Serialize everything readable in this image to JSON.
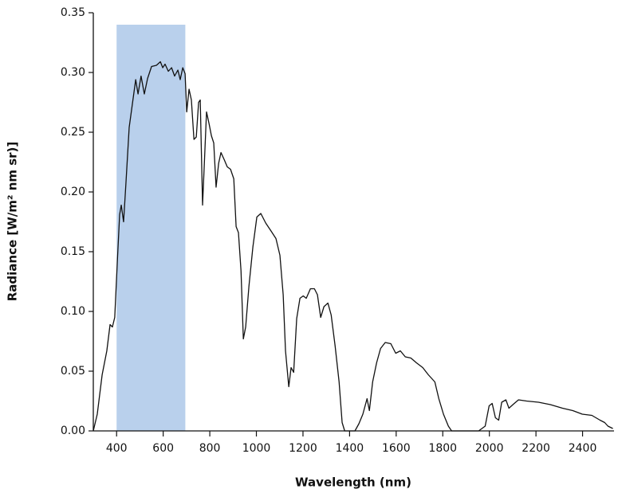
{
  "chart_data": {
    "type": "line",
    "xlabel": "Wavelength (nm)",
    "ylabel": "Radiance [W/m² nm sr)]",
    "color": "#111111",
    "x": [
      300,
      317,
      338,
      358,
      372,
      382,
      392,
      403,
      413,
      420,
      430,
      440,
      454,
      468,
      482,
      492,
      505,
      519,
      533,
      550,
      571,
      588,
      598,
      608,
      622,
      636,
      649,
      663,
      673,
      684,
      694,
      701,
      711,
      721,
      732,
      742,
      752,
      759,
      769,
      776,
      786,
      797,
      807,
      817,
      827,
      838,
      848,
      862,
      875,
      889,
      903,
      913,
      923,
      934,
      944,
      954,
      968,
      985,
      1002,
      1019,
      1040,
      1064,
      1084,
      1101,
      1115,
      1125,
      1139,
      1149,
      1160,
      1173,
      1187,
      1201,
      1214,
      1232,
      1249,
      1262,
      1276,
      1290,
      1307,
      1321,
      1338,
      1355,
      1368,
      1379,
      1423,
      1440,
      1457,
      1475,
      1485,
      1499,
      1516,
      1533,
      1553,
      1577,
      1598,
      1618,
      1639,
      1663,
      1687,
      1714,
      1738,
      1766,
      1783,
      1803,
      1824,
      1838,
      1954,
      1982,
      1999,
      2012,
      2026,
      2040,
      2053,
      2071,
      2084,
      2101,
      2125,
      2160,
      2211,
      2262,
      2314,
      2358,
      2399,
      2440,
      2475,
      2495,
      2509,
      2530
    ],
    "values": [
      0,
      0.014,
      0.047,
      0.067,
      0.089,
      0.087,
      0.095,
      0.141,
      0.181,
      0.189,
      0.175,
      0.207,
      0.254,
      0.274,
      0.294,
      0.282,
      0.297,
      0.282,
      0.295,
      0.305,
      0.306,
      0.309,
      0.304,
      0.307,
      0.301,
      0.304,
      0.297,
      0.302,
      0.294,
      0.304,
      0.299,
      0.267,
      0.286,
      0.277,
      0.244,
      0.246,
      0.275,
      0.277,
      0.189,
      0.221,
      0.267,
      0.257,
      0.247,
      0.241,
      0.204,
      0.224,
      0.233,
      0.227,
      0.221,
      0.219,
      0.211,
      0.171,
      0.166,
      0.134,
      0.077,
      0.087,
      0.121,
      0.154,
      0.179,
      0.182,
      0.174,
      0.167,
      0.161,
      0.147,
      0.114,
      0.067,
      0.037,
      0.053,
      0.049,
      0.094,
      0.111,
      0.113,
      0.111,
      0.119,
      0.119,
      0.114,
      0.095,
      0.104,
      0.107,
      0.097,
      0.071,
      0.041,
      0.007,
      0,
      0,
      0.006,
      0.014,
      0.027,
      0.017,
      0.041,
      0.057,
      0.069,
      0.074,
      0.073,
      0.065,
      0.067,
      0.062,
      0.061,
      0.057,
      0.053,
      0.047,
      0.041,
      0.027,
      0.014,
      0.004,
      0,
      0,
      0.004,
      0.021,
      0.023,
      0.011,
      0.009,
      0.024,
      0.026,
      0.019,
      0.022,
      0.026,
      0.025,
      0.024,
      0.022,
      0.019,
      0.017,
      0.014,
      0.013,
      0.009,
      0.007,
      0.004,
      0.002
    ],
    "highlight": {
      "x": [
        400,
        695
      ],
      "y": [
        0,
        0.34
      ],
      "color": "#b9d0ec"
    },
    "xlim": [
      300,
      2535
    ],
    "ylim": [
      0,
      0.35
    ],
    "xticks": [
      400,
      600,
      800,
      1000,
      1200,
      1400,
      1600,
      1800,
      2000,
      2200,
      2400
    ],
    "yticks": [
      {
        "value": 0,
        "label": "0.00"
      },
      {
        "value": 0.05,
        "label": "0.05"
      },
      {
        "value": 0.1,
        "label": "0.10"
      },
      {
        "value": 0.15,
        "label": "0.15"
      },
      {
        "value": 0.2,
        "label": "0.20"
      },
      {
        "value": 0.25,
        "label": "0.25"
      },
      {
        "value": 0.3,
        "label": "0.30"
      },
      {
        "value": 0.35,
        "label": "0.35"
      }
    ]
  }
}
